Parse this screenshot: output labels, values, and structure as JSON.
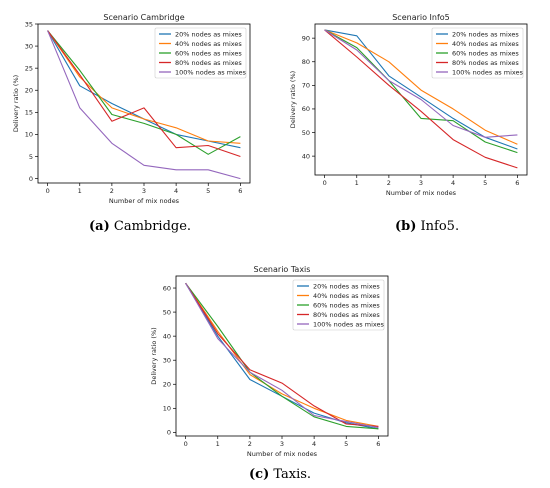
{
  "captions": [
    {
      "letter": "(a)",
      "text": " Cambridge."
    },
    {
      "letter": "(b)",
      "text": " Info5."
    },
    {
      "letter": "(c)",
      "text": " Taxis."
    }
  ],
  "colors": [
    "#1f77b4",
    "#ff7f0e",
    "#2ca02c",
    "#d62728",
    "#9467bd"
  ],
  "chart_data": [
    {
      "type": "line",
      "title": "Scenario Cambridge",
      "xlabel": "Number of mix nodes",
      "ylabel": "Delivery ratio (%)",
      "x": [
        0,
        1,
        2,
        3,
        4,
        5,
        6
      ],
      "xlim": [
        -0.3,
        6.3
      ],
      "ylim": [
        -1,
        35
      ],
      "yticks": [
        0,
        5,
        10,
        15,
        20,
        25,
        30,
        35
      ],
      "legend": "top-right",
      "series": [
        {
          "name": "20% nodes as mixes",
          "values": [
            33.5,
            21,
            17,
            13.5,
            10,
            8.5,
            7
          ]
        },
        {
          "name": "40% nodes as mixes",
          "values": [
            33.5,
            23,
            16,
            13.5,
            11.5,
            8.5,
            8
          ]
        },
        {
          "name": "60% nodes as mixes",
          "values": [
            33.5,
            24.5,
            14.5,
            12.5,
            10,
            5.5,
            9.5
          ]
        },
        {
          "name": "80% nodes as mixes",
          "values": [
            33.5,
            23.5,
            13,
            16,
            7,
            7.5,
            5
          ]
        },
        {
          "name": "100% nodes as mixes",
          "values": [
            33.5,
            16,
            8,
            3,
            2,
            2,
            0
          ]
        }
      ]
    },
    {
      "type": "line",
      "title": "Scenario Info5",
      "xlabel": "Number of mix nodes",
      "ylabel": "Delivery ratio (%)",
      "x": [
        0,
        1,
        2,
        3,
        4,
        5,
        6
      ],
      "xlim": [
        -0.3,
        6.3
      ],
      "ylim": [
        32,
        96
      ],
      "yticks": [
        40,
        50,
        60,
        70,
        80,
        90
      ],
      "legend": "top-right",
      "series": [
        {
          "name": "20% nodes as mixes",
          "values": [
            93.5,
            91,
            74,
            65,
            56,
            48,
            43
          ]
        },
        {
          "name": "40% nodes as mixes",
          "values": [
            93.5,
            88,
            80,
            68,
            60,
            51,
            45
          ]
        },
        {
          "name": "60% nodes as mixes",
          "values": [
            93.5,
            86,
            72,
            56,
            55,
            46,
            41.5
          ]
        },
        {
          "name": "80% nodes as mixes",
          "values": [
            93.5,
            82,
            70,
            59,
            47,
            39.5,
            35
          ]
        },
        {
          "name": "100% nodes as mixes",
          "values": [
            93.5,
            85,
            72,
            64,
            53,
            48,
            49
          ]
        }
      ]
    },
    {
      "type": "line",
      "title": "Scenario Taxis",
      "xlabel": "Number of mix nodes",
      "ylabel": "Delivery ratio (%)",
      "x": [
        0,
        1,
        2,
        3,
        4,
        5,
        6
      ],
      "xlim": [
        -0.3,
        6.3
      ],
      "ylim": [
        -1.5,
        65
      ],
      "yticks": [
        0,
        10,
        20,
        30,
        40,
        50,
        60
      ],
      "legend": "top-right",
      "series": [
        {
          "name": "20% nodes as mixes",
          "values": [
            62,
            40,
            22,
            15,
            8,
            4,
            1.5
          ]
        },
        {
          "name": "40% nodes as mixes",
          "values": [
            62,
            42,
            24,
            16,
            10,
            5,
            2.5
          ]
        },
        {
          "name": "60% nodes as mixes",
          "values": [
            62,
            44,
            25,
            15,
            6.5,
            2.5,
            1.5
          ]
        },
        {
          "name": "80% nodes as mixes",
          "values": [
            62,
            41,
            26,
            20.5,
            11,
            3.5,
            2.5
          ]
        },
        {
          "name": "100% nodes as mixes",
          "values": [
            62,
            39,
            25,
            17.5,
            7,
            4.5,
            2
          ]
        }
      ]
    }
  ]
}
